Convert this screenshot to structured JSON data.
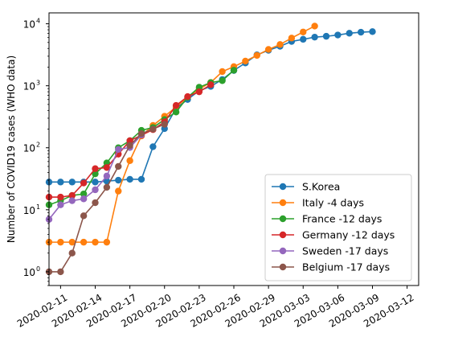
{
  "chart_data": {
    "type": "line",
    "scale": "log",
    "ylabel": "Number of COVID19 cases (WHO data)",
    "xlabel": "",
    "title": "",
    "xlim": [
      "2020-02-10",
      "2020-03-13"
    ],
    "ylim": [
      0.6,
      15000
    ],
    "x_ticks": [
      "2020-02-11",
      "2020-02-14",
      "2020-02-17",
      "2020-02-20",
      "2020-02-23",
      "2020-02-26",
      "2020-02-29",
      "2020-03-03",
      "2020-03-06",
      "2020-03-09",
      "2020-03-12"
    ],
    "y_ticks": [
      {
        "value": 1,
        "label": "10",
        "exp": "0"
      },
      {
        "value": 10,
        "label": "10",
        "exp": "1"
      },
      {
        "value": 100,
        "label": "10",
        "exp": "2"
      },
      {
        "value": 1000,
        "label": "10",
        "exp": "3"
      },
      {
        "value": 10000,
        "label": "10",
        "exp": "4"
      }
    ],
    "grid": false,
    "legend_position": "lower-right",
    "series": [
      {
        "name": "S.Korea",
        "color": "#1f77b4",
        "x": [
          "2020-02-10",
          "2020-02-11",
          "2020-02-12",
          "2020-02-13",
          "2020-02-14",
          "2020-02-15",
          "2020-02-16",
          "2020-02-17",
          "2020-02-18",
          "2020-02-19",
          "2020-02-20",
          "2020-02-21",
          "2020-02-22",
          "2020-02-23",
          "2020-02-24",
          "2020-02-25",
          "2020-02-26",
          "2020-02-27",
          "2020-02-28",
          "2020-02-29",
          "2020-03-01",
          "2020-03-02",
          "2020-03-03",
          "2020-03-04",
          "2020-03-05",
          "2020-03-06",
          "2020-03-07",
          "2020-03-08",
          "2020-03-09"
        ],
        "y": [
          28,
          28,
          28,
          28,
          28,
          29,
          30,
          31,
          31,
          104,
          204,
          433,
          602,
          833,
          977,
          1261,
          1766,
          2337,
          3150,
          3736,
          4335,
          5186,
          5621,
          6088,
          6284,
          6593,
          7041,
          7313,
          7478
        ]
      },
      {
        "name": "Italy -4 days",
        "color": "#ff7f0e",
        "x": [
          "2020-02-10",
          "2020-02-11",
          "2020-02-12",
          "2020-02-13",
          "2020-02-14",
          "2020-02-15",
          "2020-02-16",
          "2020-02-17",
          "2020-02-18",
          "2020-02-19",
          "2020-02-20",
          "2020-02-21",
          "2020-02-22",
          "2020-02-23",
          "2020-02-24",
          "2020-02-25",
          "2020-02-26",
          "2020-02-27",
          "2020-02-28",
          "2020-02-29",
          "2020-03-01",
          "2020-03-02",
          "2020-03-03",
          "2020-03-04"
        ],
        "y": [
          3,
          3,
          3,
          3,
          3,
          3,
          20,
          62,
          155,
          229,
          322,
          453,
          655,
          888,
          1128,
          1694,
          2036,
          2502,
          3089,
          3858,
          4636,
          5883,
          7375,
          9172
        ]
      },
      {
        "name": "France -12 days",
        "color": "#2ca02c",
        "x": [
          "2020-02-10",
          "2020-02-11",
          "2020-02-12",
          "2020-02-13",
          "2020-02-14",
          "2020-02-15",
          "2020-02-16",
          "2020-02-17",
          "2020-02-18",
          "2020-02-19",
          "2020-02-20",
          "2020-02-21",
          "2020-02-22",
          "2020-02-23",
          "2020-02-24",
          "2020-02-25",
          "2020-02-26"
        ],
        "y": [
          12,
          14,
          17,
          18,
          38,
          57,
          100,
          130,
          191,
          212,
          285,
          377,
          653,
          949,
          1126,
          1209,
          1784
        ]
      },
      {
        "name": "Germany -12 days",
        "color": "#d62728",
        "x": [
          "2020-02-10",
          "2020-02-11",
          "2020-02-12",
          "2020-02-13",
          "2020-02-14",
          "2020-02-15",
          "2020-02-16",
          "2020-02-17",
          "2020-02-18",
          "2020-02-19",
          "2020-02-20",
          "2020-02-21",
          "2020-02-22",
          "2020-02-23",
          "2020-02-24"
        ],
        "y": [
          16,
          16,
          17,
          27,
          46,
          48,
          79,
          130,
          159,
          196,
          262,
          482,
          670,
          799,
          1040
        ]
      },
      {
        "name": "Sweden -17 days",
        "color": "#9467bd",
        "x": [
          "2020-02-10",
          "2020-02-11",
          "2020-02-12",
          "2020-02-13",
          "2020-02-14",
          "2020-02-15",
          "2020-02-16",
          "2020-02-17",
          "2020-02-18"
        ],
        "y": [
          7,
          12,
          14,
          15,
          21,
          35,
          94,
          101,
          161
        ]
      },
      {
        "name": "Belgium -17 days",
        "color": "#8c564b",
        "x": [
          "2020-02-10",
          "2020-02-11",
          "2020-02-12",
          "2020-02-13",
          "2020-02-14",
          "2020-02-15",
          "2020-02-16",
          "2020-02-17",
          "2020-02-18",
          "2020-02-19",
          "2020-02-20"
        ],
        "y": [
          1,
          1,
          2,
          8,
          13,
          23,
          50,
          109,
          169,
          200,
          239
        ]
      }
    ]
  }
}
